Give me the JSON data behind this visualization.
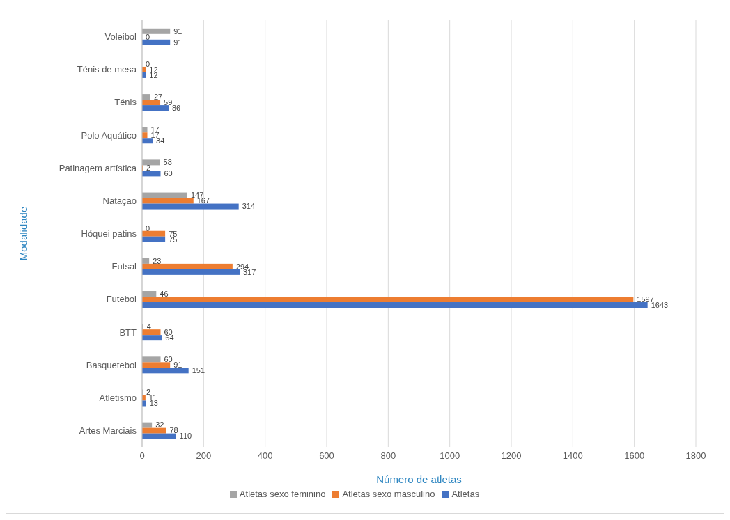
{
  "chart_data": {
    "type": "bar",
    "orientation": "horizontal",
    "xlabel": "Número de atletas",
    "ylabel": "Modalidade",
    "categories": [
      "Voleibol",
      "Ténis de mesa",
      "Ténis",
      "Polo Aquático",
      "Patinagem artística",
      "Natação",
      "Hóquei patins",
      "Futsal",
      "Futebol",
      "BTT",
      "Basquetebol",
      "Atletismo",
      "Artes Marciais"
    ],
    "series": [
      {
        "name": "Atletas sexo feminino",
        "color": "#a5a5a5",
        "values": [
          91,
          0,
          27,
          17,
          58,
          147,
          0,
          23,
          46,
          4,
          60,
          2,
          32
        ]
      },
      {
        "name": "Atletas sexo masculino",
        "color": "#ed7d31",
        "values": [
          0,
          12,
          59,
          17,
          2,
          167,
          75,
          294,
          1597,
          60,
          91,
          11,
          78
        ]
      },
      {
        "name": "Atletas",
        "color": "#4472c4",
        "values": [
          91,
          12,
          86,
          34,
          60,
          314,
          75,
          317,
          1643,
          64,
          151,
          13,
          110
        ]
      }
    ],
    "xlim": [
      0,
      1800
    ],
    "xticks": [
      0,
      200,
      400,
      600,
      800,
      1000,
      1200,
      1400,
      1600,
      1800
    ],
    "grid": "x",
    "legend": "bottom",
    "data_labels": true
  }
}
